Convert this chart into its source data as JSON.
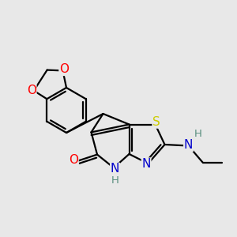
{
  "bg_color": "#e8e8e8",
  "bond_color": "#000000",
  "atom_colors": {
    "O": "#ff0000",
    "N": "#0000cc",
    "S": "#cccc00",
    "H_label": "#5a9080",
    "C": "#000000"
  },
  "bond_width": 1.6,
  "font_size_atoms": 11,
  "font_size_h": 9.5
}
